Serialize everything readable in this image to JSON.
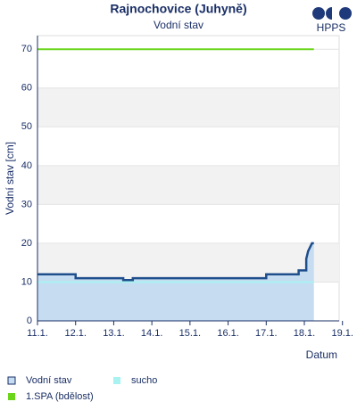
{
  "logo": "HPPS",
  "chart_data": {
    "type": "line",
    "title": "Rajnochovice (Juhyně)",
    "subtitle": "Vodní stav",
    "x_label": "Datum",
    "y_label": "Vodní stav [cm]",
    "xlim": [
      11,
      19.1
    ],
    "ylim": [
      0,
      73.5
    ],
    "xticks": [
      {
        "value": 11,
        "label": "11.1."
      },
      {
        "value": 12,
        "label": "12.1."
      },
      {
        "value": 13,
        "label": "13.1."
      },
      {
        "value": 14,
        "label": "14.1."
      },
      {
        "value": 15,
        "label": "15.1."
      },
      {
        "value": 16,
        "label": "16.1."
      },
      {
        "value": 17,
        "label": "17.1."
      },
      {
        "value": 18,
        "label": "18.1."
      },
      {
        "value": 19,
        "label": "19.1."
      }
    ],
    "yticks": [
      0,
      10,
      20,
      30,
      40,
      50,
      60,
      70
    ],
    "grid": true,
    "bands": true,
    "series": [
      {
        "name": "Vodní stav",
        "color": "#1f4e8c",
        "fill": "#c6dcf1",
        "x": [
          11,
          12,
          12,
          13.25,
          13.25,
          13.5,
          13.5,
          17,
          17,
          17.85,
          17.85,
          18.05,
          18.05,
          18.1,
          18.15,
          18.2,
          18.25
        ],
        "values": [
          12,
          12,
          11,
          11,
          10.5,
          10.5,
          11,
          11,
          12,
          12,
          13,
          13,
          16,
          18,
          19,
          20,
          20
        ]
      },
      {
        "name": "sucho",
        "color": "#a8f2f2",
        "x": [
          11,
          18.25
        ],
        "values": [
          10,
          10
        ]
      },
      {
        "name": "1.SPA (bdělost)",
        "color": "#6ad51b",
        "x": [
          11,
          18.25
        ],
        "values": [
          70,
          70
        ]
      }
    ]
  }
}
